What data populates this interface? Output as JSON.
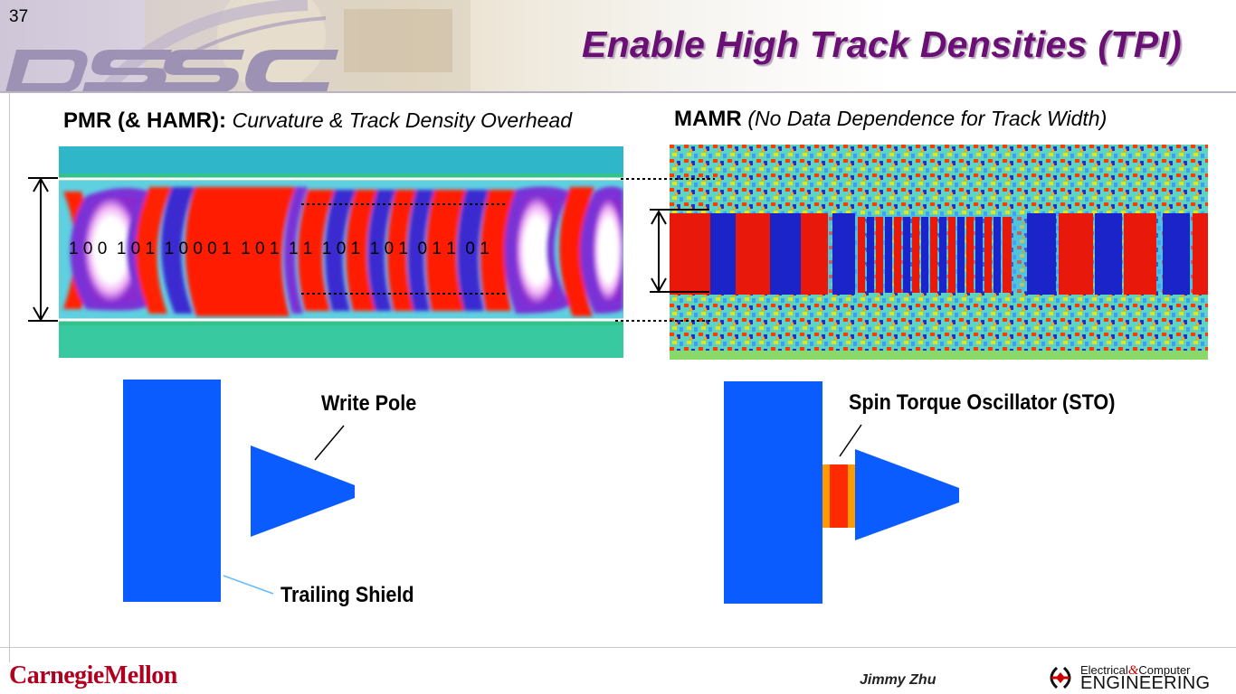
{
  "slide": {
    "number": "37",
    "title": "Enable High Track Densities (TPI)",
    "logo": "DSSC"
  },
  "left_panel": {
    "heading_bold": "PMR (& HAMR):",
    "heading_italic": "Curvature & Track Density Overhead",
    "bit_sequence": "1 0 0  1 0 1  1 0 0 0 1  1 0 1  1 1  1 0 1  1 0 1  0 1 1  0 1",
    "labels": {
      "write_pole": "Write Pole",
      "trailing_shield": "Trailing Shield"
    }
  },
  "right_panel": {
    "heading_bold": "MAMR",
    "heading_italic": "(No Data Dependence for Track Width)",
    "labels": {
      "sto": "Spin Torque Oscillator (STO)"
    }
  },
  "footer": {
    "university": "CarnegieMellon",
    "author": "Jimmy Zhu",
    "dept_line1": "Electrical",
    "dept_amp": "&",
    "dept_line1b": "Computer",
    "dept_line2": "ENGINEERING"
  },
  "colors": {
    "title": "#6a0f73",
    "pole_blue": "#0a5cff",
    "sto_orange": "#ff9a00",
    "sto_red": "#ff2a00",
    "cmu_red": "#b00020"
  }
}
